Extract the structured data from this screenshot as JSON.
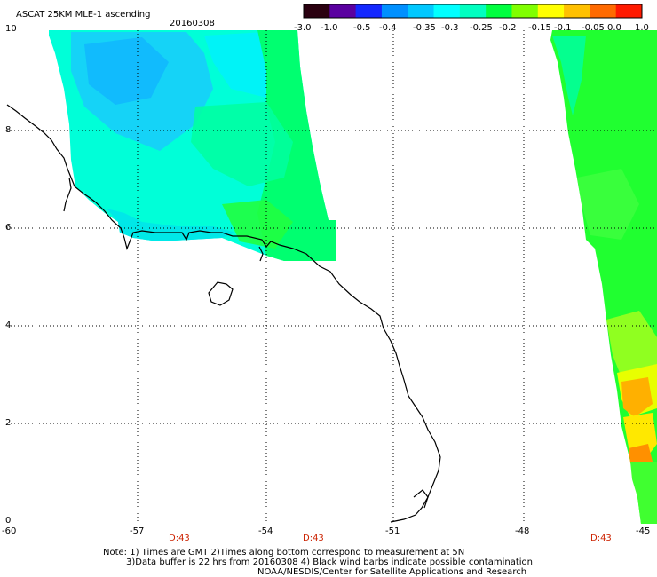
{
  "title": "ASCAT 25KM MLE-1 ascending",
  "date": "20160308",
  "colorbar": {
    "labels": [
      "-3.0",
      "-1.0",
      "-0.5",
      "-0.4",
      "-0.35",
      "-0.3",
      "-0.25",
      "-0.2",
      "-0.15",
      "-0.1",
      "-0.05",
      "0.0",
      "1.0"
    ],
    "colors": [
      "#2a0010",
      "#5a00a0",
      "#1428ff",
      "#0090ff",
      "#00c8ff",
      "#00ffff",
      "#00ffc0",
      "#00ff40",
      "#80ff00",
      "#ffff00",
      "#ffc000",
      "#ff6a00",
      "#ff1a00"
    ]
  },
  "axes": {
    "lon_ticks": [
      "-60",
      "-57",
      "-54",
      "-51",
      "-48",
      "-45"
    ],
    "lat_ticks": [
      "10",
      "8",
      "6",
      "4",
      "2",
      "0"
    ]
  },
  "pass_times": [
    "D:43",
    "D:43",
    "D:43"
  ],
  "notes": {
    "line1": "Note: 1) Times are GMT 2)Times along bottom correspond to measurement at 5N",
    "line2": "3)Data buffer is 22 hrs from 20160308 4) Black wind barbs indicate possible contamination",
    "line3": "NOAA/NESDIS/Center for Satellite Applications and Research"
  }
}
